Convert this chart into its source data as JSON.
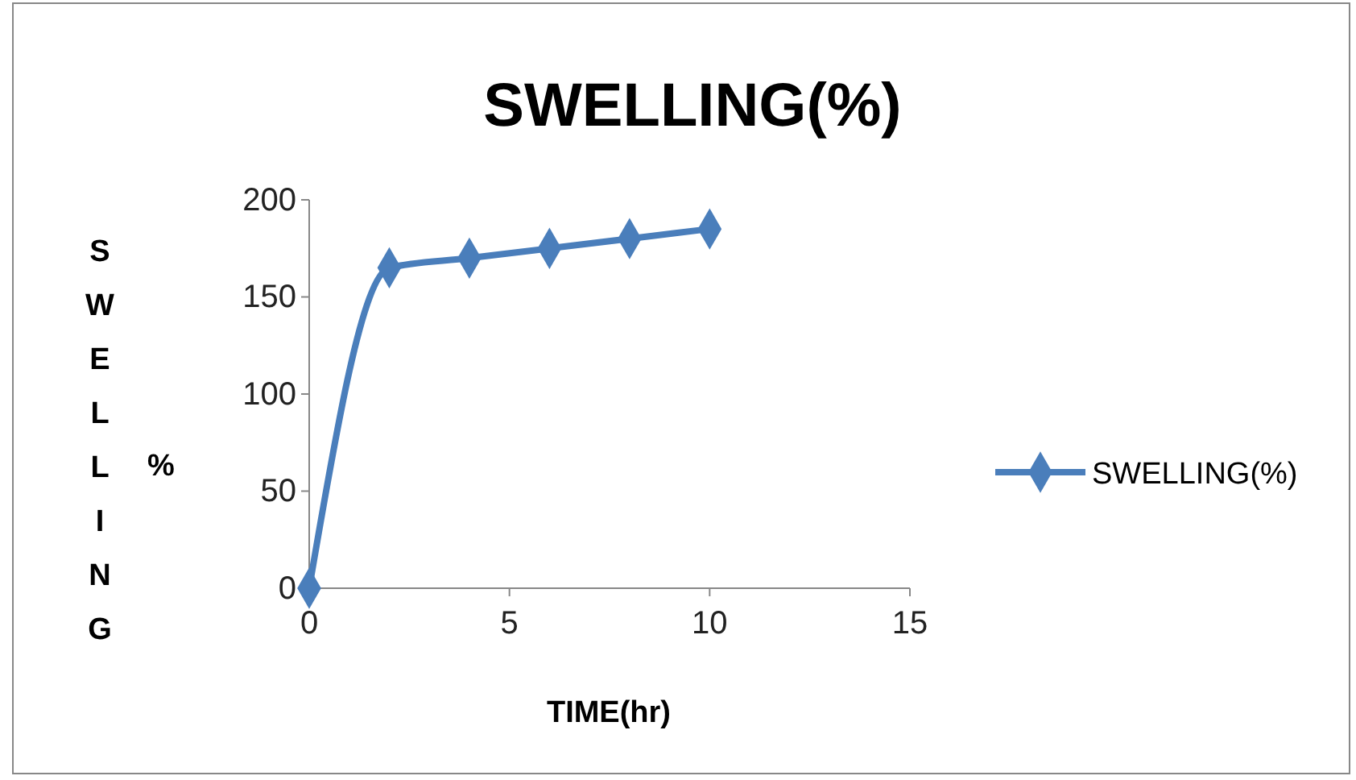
{
  "chart_data": {
    "type": "line",
    "title": "SWELLING(%)",
    "xlabel": "TIME(hr)",
    "ylabel": "SWELLING",
    "annotations": [
      "%"
    ],
    "x": [
      0,
      2,
      4,
      6,
      8,
      10
    ],
    "series": [
      {
        "name": "SWELLING(%)",
        "color": "#4a7ebb",
        "values": [
          0,
          165,
          170,
          175,
          180,
          185
        ]
      }
    ],
    "xlim": [
      0,
      15
    ],
    "xticks": [
      0,
      5,
      10,
      15
    ],
    "ylim": [
      0,
      200
    ],
    "yticks": [
      0,
      50,
      100,
      150,
      200
    ],
    "grid": false,
    "legend": "right",
    "marker": "diamond",
    "line_style": "solid"
  }
}
